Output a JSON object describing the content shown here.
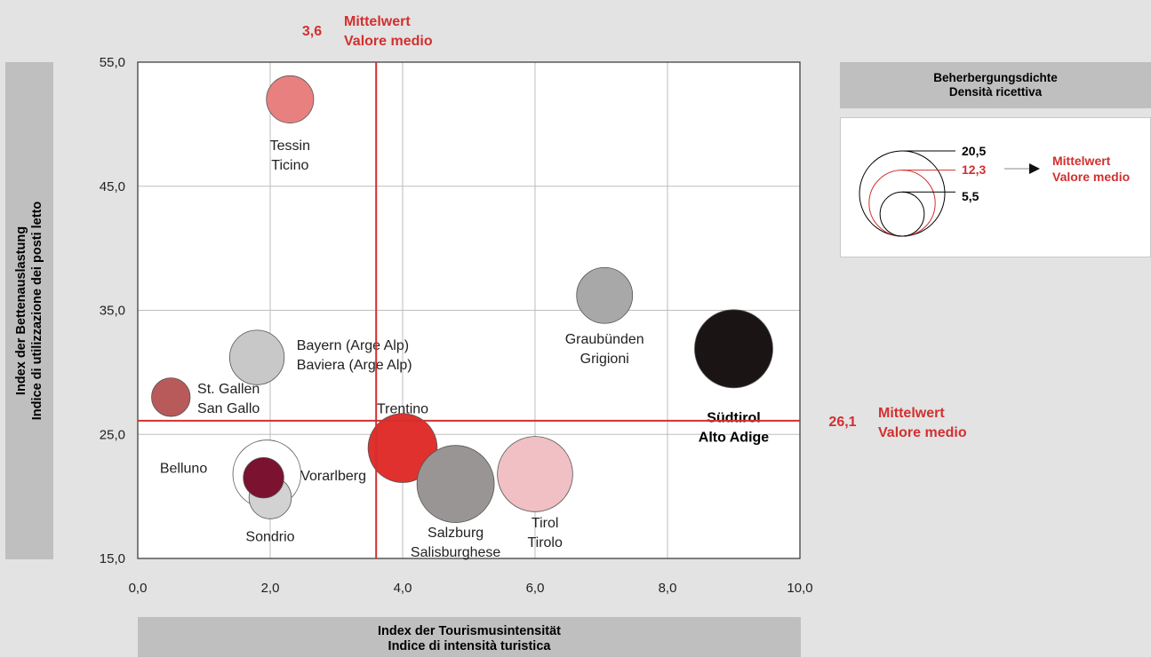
{
  "chart_data": {
    "type": "bubble",
    "xlabel": [
      "Index der Tourismusintensität",
      "Indice di intensità turistica"
    ],
    "ylabel": [
      "Index der Bettenauslastung",
      "Indice di utilizzazione dei posti letto"
    ],
    "xlim": [
      0,
      10
    ],
    "ylim": [
      15,
      55
    ],
    "x_ticks": [
      0,
      2,
      4,
      6,
      8,
      10
    ],
    "x_tick_labels": [
      "0,0",
      "2,0",
      "4,0",
      "6,0",
      "8,0",
      "10,0"
    ],
    "y_ticks": [
      15,
      25,
      35,
      45,
      55
    ],
    "y_tick_labels": [
      "15,0",
      "25,0",
      "35,0",
      "45,0",
      "55,0"
    ],
    "grid": true,
    "points": [
      {
        "label": [
          "Tessin",
          "Ticino"
        ],
        "x": 2.3,
        "y": 52.0,
        "size": 7.5,
        "color": "#e88080",
        "bold": false
      },
      {
        "label": [
          "Graubünden",
          "Grigioni"
        ],
        "x": 7.05,
        "y": 36.2,
        "size": 10.5,
        "color": "#a8a8a8",
        "bold": false
      },
      {
        "label": [
          "Südtirol",
          "Alto Adige"
        ],
        "x": 9.0,
        "y": 31.9,
        "size": 20.5,
        "color": "#1a1414",
        "bold": true
      },
      {
        "label": [
          "Bayern (Arge Alp)",
          "Baviera (Arge Alp)"
        ],
        "x": 1.8,
        "y": 31.2,
        "size": 10.0,
        "color": "#c8c8c8",
        "bold": false
      },
      {
        "label": [
          "St. Gallen",
          "San Gallo"
        ],
        "x": 0.5,
        "y": 28.0,
        "size": 5.0,
        "color": "#b85a5a",
        "bold": false
      },
      {
        "label": [
          "Trentino"
        ],
        "x": 4.0,
        "y": 23.9,
        "size": 16.0,
        "color": "#e0312f",
        "bold": false
      },
      {
        "label": [
          "Belluno"
        ],
        "x": 1.95,
        "y": 21.8,
        "size": 15.5,
        "color": "#ffffff",
        "bold": false
      },
      {
        "label": [
          "Sondrio"
        ],
        "x": 2.0,
        "y": 19.9,
        "size": 6.0,
        "color": "#d2d2d2",
        "bold": false
      },
      {
        "label": [
          "Belluno (Kern)"
        ],
        "x": 1.9,
        "y": 21.5,
        "size": 5.5,
        "color": "#7a1230",
        "bold": false,
        "hide_label": true
      },
      {
        "label": [
          "Salzburg",
          "Salisburghese"
        ],
        "x": 4.8,
        "y": 21.0,
        "size": 20.0,
        "color": "#9a9595",
        "bold": false
      },
      {
        "label": [
          "Tirol",
          "Tirolo"
        ],
        "x": 6.0,
        "y": 21.8,
        "size": 19.0,
        "color": "#f0c0c4",
        "bold": false
      },
      {
        "label": [
          "Vorarlberg"
        ],
        "x": 3.6,
        "y": 20.5,
        "size": 0,
        "color": "#000000",
        "bold": false,
        "hide_label": true
      }
    ],
    "point_labels": [
      {
        "text": [
          "Tessin",
          "Ticino"
        ],
        "x": 2.3,
        "y": 47.9,
        "anchor": "middle"
      },
      {
        "text": [
          "Graubünden",
          "Grigioni"
        ],
        "x": 7.05,
        "y": 32.3,
        "anchor": "middle"
      },
      {
        "text": [
          "Südtirol",
          "Alto Adige"
        ],
        "x": 9.0,
        "y": 26.0,
        "anchor": "middle",
        "bold": true
      },
      {
        "text": [
          "Bayern (Arge Alp)",
          "Baviera (Arge Alp)"
        ],
        "x": 2.4,
        "y": 31.8,
        "anchor": "start"
      },
      {
        "text": [
          "St. Gallen",
          "San Gallo"
        ],
        "x": 0.9,
        "y": 28.3,
        "anchor": "start"
      },
      {
        "text": [
          "Trentino"
        ],
        "x": 4.0,
        "y": 26.7,
        "anchor": "middle"
      },
      {
        "text": [
          "Belluno"
        ],
        "x": 1.05,
        "y": 21.9,
        "anchor": "end"
      },
      {
        "text": [
          "Vorarlberg"
        ],
        "x": 3.45,
        "y": 21.3,
        "anchor": "end"
      },
      {
        "text": [
          "Sondrio"
        ],
        "x": 2.0,
        "y": 16.4,
        "anchor": "middle"
      },
      {
        "text": [
          "Salzburg",
          "Salisburghese"
        ],
        "x": 4.8,
        "y": 16.7,
        "anchor": "middle"
      },
      {
        "text": [
          "Tirol",
          "Tirolo"
        ],
        "x": 6.15,
        "y": 17.5,
        "anchor": "middle"
      }
    ],
    "mean_lines": {
      "x": {
        "value": 3.6,
        "label": "3,6",
        "text": [
          "Mittelwert",
          "Valore medio"
        ],
        "color": "#d32f2f"
      },
      "y": {
        "value": 26.1,
        "label": "26,1",
        "text": [
          "Mittelwert",
          "Valore medio"
        ],
        "color": "#d32f2f"
      }
    },
    "legend": {
      "title": [
        "Beherbergungsdichte",
        "Densità ricettiva"
      ],
      "sizes": [
        {
          "value": 20.5,
          "label": "20,5",
          "color": "#000000"
        },
        {
          "value": 12.3,
          "label": "12,3",
          "color": "#d32f2f"
        },
        {
          "value": 5.5,
          "label": "5,5",
          "color": "#000000"
        }
      ],
      "mean_text": [
        "Mittelwert",
        "Valore medio"
      ],
      "mean_color": "#d32f2f"
    }
  }
}
